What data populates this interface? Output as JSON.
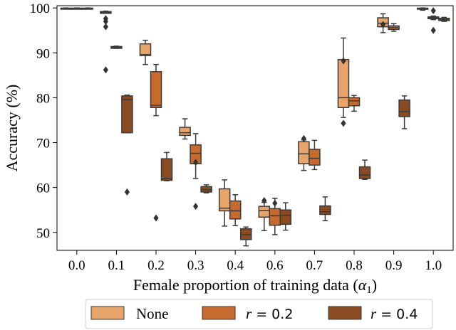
{
  "chart_data": {
    "type": "box",
    "xlabel": "Female proportion of training data (",
    "xlabel_symbol": "α",
    "xlabel_subscript": "1",
    "xlabel_close": ")",
    "ylabel": "Accuracy (%)",
    "categories": [
      "0.0",
      "0.1",
      "0.2",
      "0.3",
      "0.4",
      "0.6",
      "0.7",
      "0.8",
      "0.9",
      "1.0"
    ],
    "ylim": [
      46,
      100.5
    ],
    "yticks": [
      50,
      60,
      70,
      80,
      90,
      100
    ],
    "grid": false,
    "legend_position": "bottom-center",
    "series": [
      {
        "name": "None",
        "legend_text": "None",
        "color": "#E8A56B",
        "boxes": [
          {
            "category": "0.0",
            "whislo": 99.8,
            "q1": 99.85,
            "med": 99.9,
            "q3": 99.95,
            "whishi": 100,
            "fliers": []
          },
          {
            "category": "0.1",
            "whislo": 98.8,
            "q1": 98.8,
            "med": 99.0,
            "q3": 99.2,
            "whishi": 99.3,
            "fliers": [
              97.6,
              97.0,
              95.8,
              86.2
            ]
          },
          {
            "category": "0.2",
            "whislo": 87.4,
            "q1": 89.4,
            "med": 89.6,
            "q3": 92.0,
            "whishi": 92.8,
            "fliers": []
          },
          {
            "category": "0.3",
            "whislo": 70.8,
            "q1": 71.6,
            "med": 72.2,
            "q3": 73.4,
            "whishi": 75.3,
            "fliers": []
          },
          {
            "category": "0.4",
            "whislo": 51.4,
            "q1": 54.8,
            "med": 55.4,
            "q3": 59.7,
            "whishi": 61.7,
            "fliers": []
          },
          {
            "category": "0.6",
            "whislo": 50.4,
            "q1": 53.4,
            "med": 54.9,
            "q3": 55.8,
            "whishi": 56.7,
            "fliers": [
              57.1
            ]
          },
          {
            "category": "0.7",
            "whislo": 63.8,
            "q1": 65.3,
            "med": 67.5,
            "q3": 70.2,
            "whishi": 70.6,
            "fliers": [
              70.9
            ]
          },
          {
            "category": "0.8",
            "whislo": 75.6,
            "q1": 77.8,
            "med": 80.0,
            "q3": 88.5,
            "whishi": 93.3,
            "fliers": [
              88.2,
              74.3
            ]
          },
          {
            "category": "0.9",
            "whislo": 94.5,
            "q1": 95.8,
            "med": 96.6,
            "q3": 97.8,
            "whishi": 98.7,
            "fliers": [
              96.3
            ]
          },
          {
            "category": "1.0",
            "whislo": 99.5,
            "q1": 99.7,
            "med": 99.85,
            "q3": 99.95,
            "whishi": 100,
            "fliers": []
          }
        ]
      },
      {
        "name": "r = 0.2",
        "legend_r": "r",
        "legend_eq": " = 0.2",
        "color": "#C66A2E",
        "boxes": [
          {
            "category": "0.0",
            "whislo": 99.8,
            "q1": 99.85,
            "med": 99.9,
            "q3": 99.95,
            "whishi": 100,
            "fliers": []
          },
          {
            "category": "0.1",
            "whislo": 91.0,
            "q1": 91.0,
            "med": 91.2,
            "q3": 91.4,
            "whishi": 91.5,
            "fliers": []
          },
          {
            "category": "0.2",
            "whislo": 76.0,
            "q1": 77.8,
            "med": 78.3,
            "q3": 85.8,
            "whishi": 87.4,
            "fliers": [
              53.2
            ]
          },
          {
            "category": "0.3",
            "whislo": 62.0,
            "q1": 65.3,
            "med": 67.6,
            "q3": 69.5,
            "whishi": 72.0,
            "fliers": [
              65.6,
              55.8
            ]
          },
          {
            "category": "0.4",
            "whislo": 51.5,
            "q1": 53.0,
            "med": 54.8,
            "q3": 57.0,
            "whishi": 58.4,
            "fliers": []
          },
          {
            "category": "0.6",
            "whislo": 49.5,
            "q1": 51.6,
            "med": 53.7,
            "q3": 55.3,
            "whishi": 57.6,
            "fliers": [
              56.5
            ]
          },
          {
            "category": "0.7",
            "whislo": 64.0,
            "q1": 65.0,
            "med": 66.5,
            "q3": 68.5,
            "whishi": 70.5,
            "fliers": []
          },
          {
            "category": "0.8",
            "whislo": 77.0,
            "q1": 78.2,
            "med": 79.3,
            "q3": 80.0,
            "whishi": 80.5,
            "fliers": []
          },
          {
            "category": "0.9",
            "whislo": 94.8,
            "q1": 95.2,
            "med": 95.6,
            "q3": 96.0,
            "whishi": 96.5,
            "fliers": []
          },
          {
            "category": "1.0",
            "whislo": 97.4,
            "q1": 97.6,
            "med": 97.8,
            "q3": 98.0,
            "whishi": 98.2,
            "fliers": [
              99.4,
              95.0
            ]
          }
        ]
      },
      {
        "name": "r = 0.4",
        "legend_r": "r",
        "legend_eq": " = 0.4",
        "color": "#8A4A22",
        "boxes": [
          {
            "category": "0.0",
            "whislo": 99.8,
            "q1": 99.85,
            "med": 99.9,
            "q3": 99.95,
            "whishi": 100,
            "fliers": []
          },
          {
            "category": "0.1",
            "whislo": 72.2,
            "q1": 72.2,
            "med": 79.6,
            "q3": 80.4,
            "whishi": 80.6,
            "fliers": [
              59.0
            ]
          },
          {
            "category": "0.2",
            "whislo": 61.5,
            "q1": 61.6,
            "med": 62.0,
            "q3": 66.4,
            "whishi": 67.8,
            "fliers": []
          },
          {
            "category": "0.3",
            "whislo": 58.8,
            "q1": 59.0,
            "med": 59.5,
            "q3": 60.2,
            "whishi": 60.6,
            "fliers": []
          },
          {
            "category": "0.4",
            "whislo": 47.0,
            "q1": 48.4,
            "med": 49.5,
            "q3": 50.8,
            "whishi": 51.2,
            "fliers": []
          },
          {
            "category": "0.6",
            "whislo": 50.5,
            "q1": 51.8,
            "med": 53.8,
            "q3": 55.0,
            "whishi": 56.6,
            "fliers": []
          },
          {
            "category": "0.7",
            "whislo": 52.6,
            "q1": 54.0,
            "med": 54.6,
            "q3": 55.9,
            "whishi": 57.9,
            "fliers": []
          },
          {
            "category": "0.8",
            "whislo": 61.8,
            "q1": 62.0,
            "med": 62.8,
            "q3": 64.6,
            "whishi": 66.1,
            "fliers": []
          },
          {
            "category": "0.9",
            "whislo": 73.1,
            "q1": 75.8,
            "med": 76.9,
            "q3": 79.5,
            "whishi": 80.4,
            "fliers": []
          },
          {
            "category": "1.0",
            "whislo": 97.0,
            "q1": 97.2,
            "med": 97.4,
            "q3": 97.7,
            "whishi": 97.9,
            "fliers": []
          }
        ]
      }
    ]
  }
}
